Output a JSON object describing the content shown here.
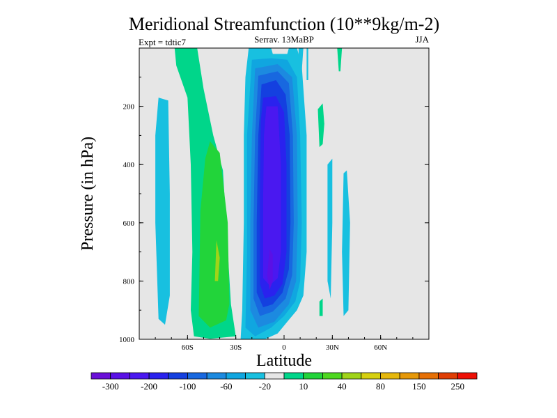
{
  "chart_data": {
    "type": "heatmap",
    "title": "Meridional Streamfunction (10**9kg/m-2)",
    "left_label": "Expt = tdtic7",
    "center_label": "Serrav.   13MaBP",
    "right_label": "JJA",
    "xlabel": "Latitude",
    "ylabel": "Pressure (in hPa)",
    "xlim": [
      -90,
      90
    ],
    "ylim": [
      1000,
      0
    ],
    "x_ticks": [
      {
        "value": -60,
        "label": "60S"
      },
      {
        "value": -30,
        "label": "30S"
      },
      {
        "value": 0,
        "label": "0"
      },
      {
        "value": 30,
        "label": "30N"
      },
      {
        "value": 60,
        "label": "60N"
      }
    ],
    "y_ticks": [
      {
        "value": 200,
        "label": "200"
      },
      {
        "value": 400,
        "label": "400"
      },
      {
        "value": 600,
        "label": "600"
      },
      {
        "value": 800,
        "label": "800"
      },
      {
        "value": 1000,
        "label": "1000"
      }
    ],
    "background_color": "#e6e6e6",
    "colorbar": {
      "colors": [
        "#6a0fd8",
        "#5a10e6",
        "#4a18f0",
        "#2a22ee",
        "#1440e0",
        "#1868e0",
        "#1c8ae0",
        "#10a6e0",
        "#18c0e0",
        "#e6e6e6",
        "#00d68a",
        "#22d43a",
        "#4ed820",
        "#a0d418",
        "#d6d010",
        "#e6b80c",
        "#e69808",
        "#e67006",
        "#e03e04",
        "#ee1006"
      ],
      "labels": [
        {
          "after_index": 0,
          "text": "-300"
        },
        {
          "after_index": 2,
          "text": "-200"
        },
        {
          "after_index": 4,
          "text": "-100"
        },
        {
          "after_index": 6,
          "text": "-60"
        },
        {
          "after_index": 8,
          "text": "-20"
        },
        {
          "after_index": 10,
          "text": "10"
        },
        {
          "after_index": 12,
          "text": "40"
        },
        {
          "after_index": 14,
          "text": "80"
        },
        {
          "after_index": 16,
          "text": "150"
        },
        {
          "after_index": 18,
          "text": "250"
        }
      ]
    },
    "contours": [
      {
        "name": "sh-band-weak-negative",
        "color": "#18c0e0",
        "points": [
          [
            -78,
            170
          ],
          [
            -72,
            180
          ],
          [
            -71,
            500
          ],
          [
            -71,
            850
          ],
          [
            -74,
            950
          ],
          [
            -78,
            930
          ],
          [
            -80,
            600
          ],
          [
            -80,
            300
          ]
        ]
      },
      {
        "name": "southern-cell-10-shell",
        "color": "#00d68a",
        "points": [
          [
            -68,
            0
          ],
          [
            -54,
            0
          ],
          [
            -50,
            140
          ],
          [
            -44,
            300
          ],
          [
            -38,
            420
          ],
          [
            -33,
            880
          ],
          [
            -30,
            990
          ],
          [
            -46,
            998
          ],
          [
            -56,
            990
          ],
          [
            -58,
            900
          ],
          [
            -57,
            700
          ],
          [
            -58,
            400
          ],
          [
            -60,
            170
          ],
          [
            -67,
            60
          ]
        ]
      },
      {
        "name": "southern-cell-40",
        "color": "#22d43a",
        "points": [
          [
            -52,
            560
          ],
          [
            -49,
            380
          ],
          [
            -46,
            320
          ],
          [
            -40,
            360
          ],
          [
            -35,
            600
          ],
          [
            -34,
            880
          ],
          [
            -36,
            935
          ],
          [
            -46,
            960
          ],
          [
            -53,
            920
          ]
        ]
      },
      {
        "name": "southern-cell-80",
        "color": "#a0d418",
        "points": [
          [
            -43,
            800
          ],
          [
            -42,
            660
          ],
          [
            -40,
            720
          ],
          [
            -41,
            800
          ]
        ]
      },
      {
        "name": "hadley-cell-weak-shell",
        "color": "#18c0e0",
        "points": [
          [
            -22,
            0
          ],
          [
            -8,
            0
          ],
          [
            -7,
            20
          ],
          [
            2,
            20
          ],
          [
            3,
            0
          ],
          [
            8,
            0
          ],
          [
            11,
            60
          ],
          [
            14,
            300
          ],
          [
            14,
            700
          ],
          [
            12,
            850
          ],
          [
            8,
            900
          ],
          [
            2,
            940
          ],
          [
            -4,
            980
          ],
          [
            -12,
            1000
          ],
          [
            -27,
            1000
          ],
          [
            -26,
            900
          ],
          [
            -25,
            600
          ],
          [
            -25,
            300
          ],
          [
            -24,
            100
          ]
        ]
      },
      {
        "name": "hadley-cell-minus-20",
        "color": "#10a6e0",
        "points": [
          [
            -20,
            40
          ],
          [
            -8,
            35
          ],
          [
            2,
            40
          ],
          [
            8,
            100
          ],
          [
            10,
            300
          ],
          [
            11,
            600
          ],
          [
            10,
            800
          ],
          [
            7,
            870
          ],
          [
            0,
            920
          ],
          [
            -8,
            960
          ],
          [
            -18,
            990
          ],
          [
            -24,
            960
          ],
          [
            -23,
            700
          ],
          [
            -23,
            300
          ]
        ]
      },
      {
        "name": "hadley-cell-minus-60",
        "color": "#1c8ae0",
        "points": [
          [
            -18,
            70
          ],
          [
            -4,
            55
          ],
          [
            5,
            100
          ],
          [
            8,
            300
          ],
          [
            8.5,
            600
          ],
          [
            7.5,
            800
          ],
          [
            3,
            880
          ],
          [
            -6,
            940
          ],
          [
            -16,
            960
          ],
          [
            -21,
            900
          ],
          [
            -21,
            600
          ],
          [
            -20,
            300
          ]
        ]
      },
      {
        "name": "hadley-cell-minus-100",
        "color": "#1868e0",
        "points": [
          [
            -16,
            95
          ],
          [
            -4,
            80
          ],
          [
            3,
            120
          ],
          [
            5.5,
            300
          ],
          [
            6,
            600
          ],
          [
            5,
            780
          ],
          [
            1,
            860
          ],
          [
            -7,
            905
          ],
          [
            -15,
            920
          ],
          [
            -19,
            860
          ],
          [
            -19,
            600
          ],
          [
            -18,
            300
          ]
        ]
      },
      {
        "name": "hadley-cell-minus-150",
        "color": "#1440e0",
        "points": [
          [
            -14,
            125
          ],
          [
            -5,
            110
          ],
          [
            1,
            160
          ],
          [
            3.5,
            300
          ],
          [
            4,
            600
          ],
          [
            3,
            760
          ],
          [
            -1,
            840
          ],
          [
            -7,
            880
          ],
          [
            -13,
            890
          ],
          [
            -17,
            840
          ],
          [
            -17,
            600
          ],
          [
            -16,
            300
          ]
        ]
      },
      {
        "name": "hadley-cell-minus-200",
        "color": "#2a22ee",
        "points": [
          [
            -13,
            170
          ],
          [
            -5,
            165
          ],
          [
            0,
            220
          ],
          [
            1.5,
            400
          ],
          [
            1.5,
            700
          ],
          [
            -1,
            810
          ],
          [
            -6,
            850
          ],
          [
            -12,
            860
          ],
          [
            -15,
            810
          ],
          [
            -15,
            500
          ],
          [
            -14.5,
            250
          ]
        ]
      },
      {
        "name": "hadley-cell-minus-250",
        "color": "#4a18f0",
        "points": [
          [
            -11,
            200
          ],
          [
            -4,
            200
          ],
          [
            -2,
            400
          ],
          [
            -2,
            700
          ],
          [
            -4,
            790
          ],
          [
            -9,
            815
          ],
          [
            -13,
            790
          ],
          [
            -13,
            500
          ],
          [
            -12.5,
            300
          ]
        ]
      },
      {
        "name": "hadley-cell-minus-300",
        "color": "#5a10e6",
        "points": [
          [
            -9,
            690
          ],
          [
            -7,
            710
          ],
          [
            -7,
            800
          ],
          [
            -9,
            830
          ],
          [
            -10.5,
            780
          ]
        ]
      },
      {
        "name": "nh-high-positive-strip",
        "color": "#00d68a",
        "points": [
          [
            33,
            0
          ],
          [
            36,
            0
          ],
          [
            35,
            80
          ],
          [
            34,
            80
          ]
        ]
      },
      {
        "name": "nh-mid-positive-blob",
        "color": "#00d68a",
        "points": [
          [
            21,
            210
          ],
          [
            24,
            190
          ],
          [
            25,
            260
          ],
          [
            24,
            330
          ],
          [
            22,
            340
          ]
        ]
      },
      {
        "name": "nh-low-positive-blob",
        "color": "#00d68a",
        "points": [
          [
            22,
            870
          ],
          [
            24,
            860
          ],
          [
            24,
            920
          ],
          [
            22,
            920
          ]
        ]
      },
      {
        "name": "nh-weak-negative-strip-a",
        "color": "#18c0e0",
        "points": [
          [
            27,
            400
          ],
          [
            30,
            380
          ],
          [
            30,
            600
          ],
          [
            29,
            860
          ],
          [
            27,
            800
          ]
        ]
      },
      {
        "name": "nh-weak-negative-strip-b",
        "color": "#18c0e0",
        "points": [
          [
            37,
            430
          ],
          [
            39,
            420
          ],
          [
            41,
            600
          ],
          [
            40,
            900
          ],
          [
            37,
            920
          ],
          [
            36,
            700
          ]
        ]
      },
      {
        "name": "equatorial-notch-a",
        "color": "#18c0e0",
        "points": [
          [
            9,
            0
          ],
          [
            12,
            0
          ],
          [
            11,
            80
          ],
          [
            9,
            90
          ]
        ]
      },
      {
        "name": "equatorial-notch-b",
        "color": "#18c0e0",
        "points": [
          [
            14,
            0
          ],
          [
            15,
            0
          ],
          [
            15,
            110
          ],
          [
            14,
            110
          ]
        ]
      }
    ]
  }
}
